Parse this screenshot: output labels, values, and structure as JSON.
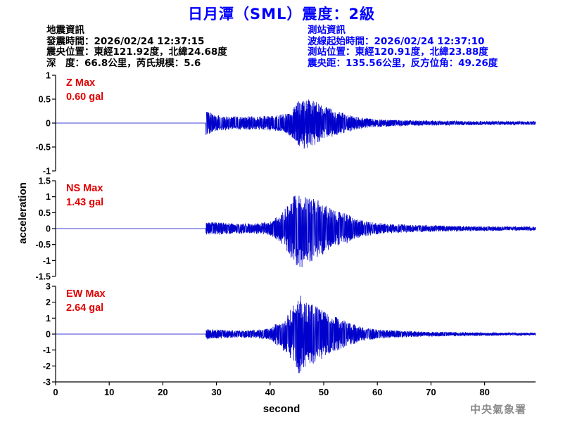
{
  "header": {
    "title": "日月潭（SML）震度：2級"
  },
  "quake_info": {
    "heading": "地震資訊",
    "origin_time": "發震時間：2026/02/24 12:37:15",
    "epicenter": "震央位置：東經121.92度，北緯24.68度",
    "depth_magnitude": "深　度：66.8公里，芮氏規模：5.6"
  },
  "station_info": {
    "heading": "測站資訊",
    "wave_start": "波線起始時間：2026/02/24 12:37:10",
    "station_location": "測站位置：東經120.91度，北緯23.88度",
    "distance_azimuth": "震央距：135.56公里，反方位角：49.26度"
  },
  "footer": {
    "agency": "中央氣象署"
  },
  "chart_data": [
    {
      "type": "line",
      "component": "Z",
      "label_name": "Z Max",
      "label_value": "0.60 gal",
      "peak_gal": 0.6,
      "ylim": [
        -1,
        1
      ],
      "yticks": [
        -1,
        -0.5,
        0,
        0.5,
        1
      ],
      "ytick_labels": [
        "-1",
        "-0.5",
        "0",
        "0.5",
        "1"
      ],
      "xlim": [
        0,
        89.5
      ],
      "p_arrival_s": 28,
      "s_arrival_s": 45,
      "envelope": {
        "x": [
          27.9,
          28.5,
          30,
          33,
          36,
          40,
          43,
          44.5,
          46,
          47.5,
          50,
          53,
          56,
          60,
          65,
          70,
          80,
          89.5
        ],
        "y": [
          0.3,
          0.24,
          0.17,
          0.14,
          0.14,
          0.15,
          0.2,
          0.35,
          0.58,
          0.52,
          0.35,
          0.24,
          0.13,
          0.08,
          0.06,
          0.05,
          0.04,
          0.035
        ]
      },
      "color": "#0000cc"
    },
    {
      "type": "line",
      "component": "NS",
      "label_name": "NS Max",
      "label_value": "1.43 gal",
      "peak_gal": 1.43,
      "ylim": [
        -1.5,
        1.5
      ],
      "yticks": [
        -1.5,
        -1,
        -0.5,
        0,
        0.5,
        1,
        1.5
      ],
      "ytick_labels": [
        "-1.5",
        "-1",
        "-0.5",
        "0",
        "0.5",
        "1",
        "1.5"
      ],
      "xlim": [
        0,
        89.5
      ],
      "p_arrival_s": 28,
      "s_arrival_s": 44,
      "envelope": {
        "x": [
          27.9,
          29,
          31,
          34,
          37,
          40,
          42,
          44,
          45.5,
          47,
          48.5,
          50,
          52,
          54,
          56,
          60,
          65,
          70,
          80,
          89.5
        ],
        "y": [
          0.18,
          0.2,
          0.19,
          0.15,
          0.16,
          0.22,
          0.45,
          0.95,
          1.3,
          1.1,
          0.95,
          0.8,
          0.55,
          0.5,
          0.3,
          0.18,
          0.12,
          0.1,
          0.07,
          0.06
        ]
      },
      "color": "#0000cc"
    },
    {
      "type": "line",
      "component": "EW",
      "label_name": "EW Max",
      "label_value": "2.64 gal",
      "peak_gal": 2.64,
      "ylim": [
        -3,
        3
      ],
      "yticks": [
        -3,
        -2,
        -1,
        0,
        1,
        2,
        3
      ],
      "ytick_labels": [
        "-3",
        "-2",
        "-1",
        "0",
        "1",
        "2",
        "3"
      ],
      "xlim": [
        0,
        89.5
      ],
      "p_arrival_s": 28,
      "s_arrival_s": 43,
      "envelope": {
        "x": [
          27.9,
          29,
          31,
          34,
          37,
          40,
          42,
          44,
          45.5,
          46.5,
          48,
          49.5,
          51,
          53,
          55,
          57,
          60,
          65,
          70,
          80,
          89.5
        ],
        "y": [
          0.35,
          0.3,
          0.28,
          0.22,
          0.25,
          0.35,
          0.9,
          1.6,
          2.55,
          2.1,
          1.9,
          1.6,
          1.2,
          1.0,
          0.7,
          0.45,
          0.3,
          0.2,
          0.15,
          0.1,
          0.08
        ]
      },
      "color": "#0000cc"
    }
  ],
  "x_axis": {
    "label": "second",
    "ticks": [
      0,
      10,
      20,
      30,
      40,
      50,
      60,
      70,
      80
    ],
    "tick_labels": [
      "0",
      "10",
      "20",
      "30",
      "40",
      "50",
      "60",
      "70",
      "80"
    ]
  },
  "y_axis": {
    "label": "acceleration"
  },
  "colors": {
    "title": "#0000ff",
    "trace": "#0000cc",
    "max_label": "#e00000",
    "station_info": "#0000ff",
    "footer": "#8c8c8c"
  }
}
